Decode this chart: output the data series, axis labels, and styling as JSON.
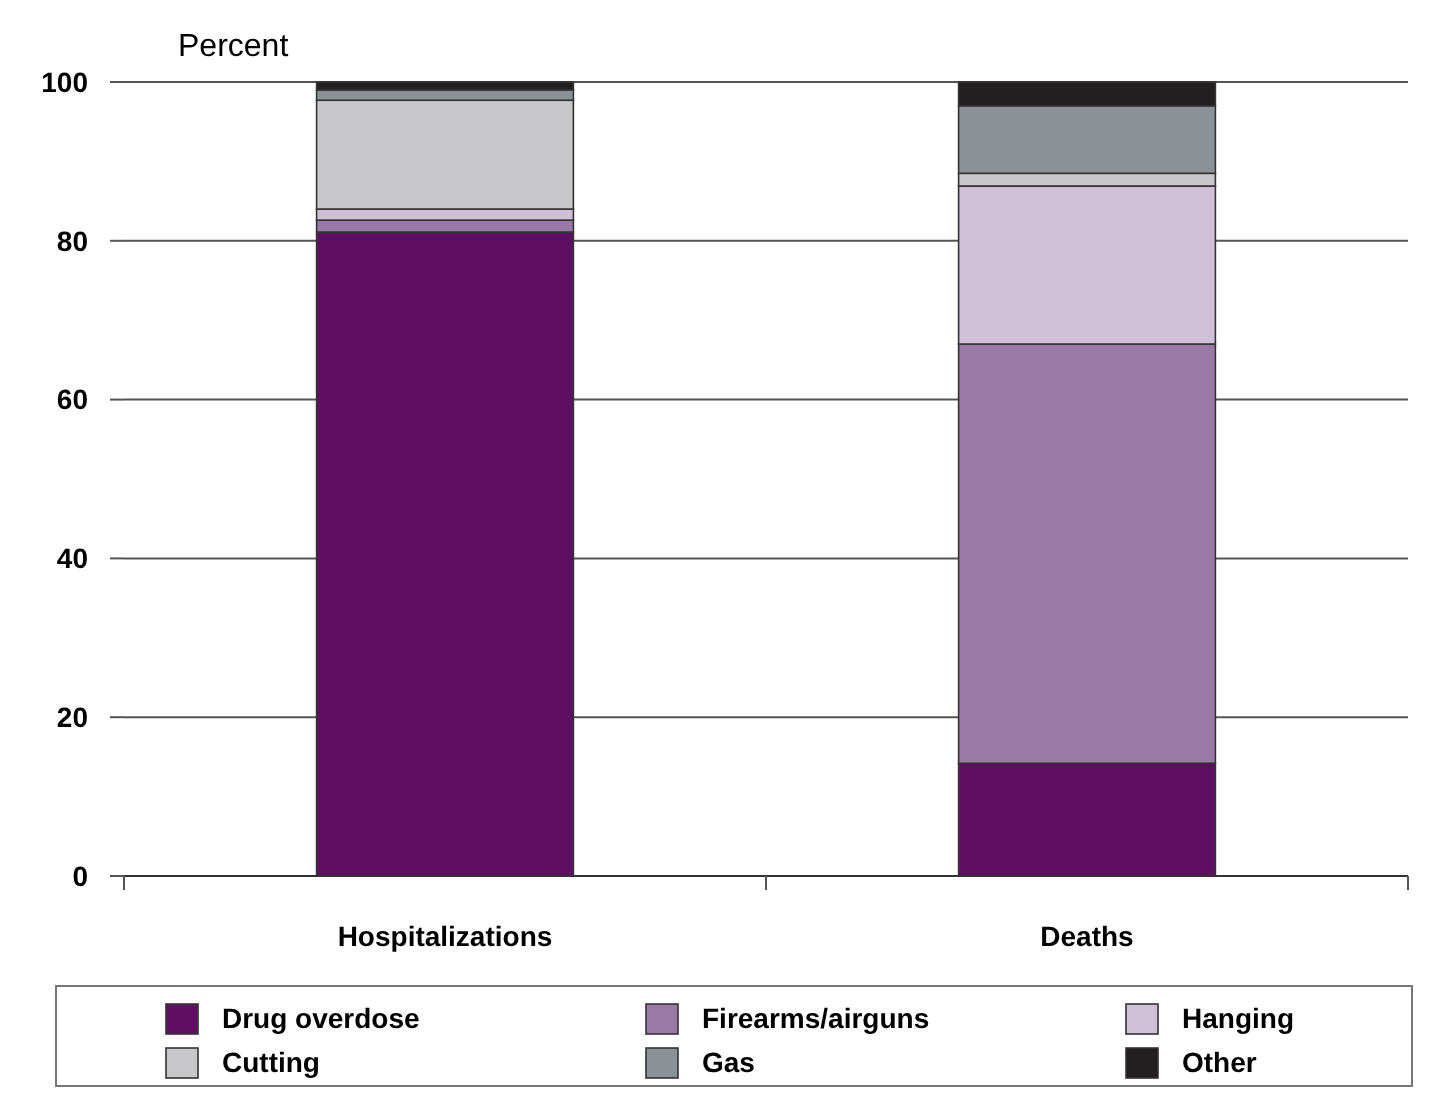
{
  "chart_data": {
    "type": "bar",
    "stacked": true,
    "ylabel": "Percent",
    "categories": [
      "Hospitalizations",
      "Deaths"
    ],
    "series": [
      {
        "name": "Drug overdose",
        "color": "#5f0f63",
        "values": [
          81.1,
          14.2
        ]
      },
      {
        "name": "Firearms/airguns",
        "color": "#9b79a6",
        "values": [
          1.5,
          52.8
        ]
      },
      {
        "name": "Hanging",
        "color": "#cfc0d8",
        "values": [
          1.4,
          19.9
        ]
      },
      {
        "name": "Cutting",
        "color": "#c8c8ca",
        "values": [
          13.7,
          1.6
        ]
      },
      {
        "name": "Gas",
        "color": "#8a9297",
        "values": [
          1.3,
          8.5
        ]
      },
      {
        "name": "Other",
        "color": "#231f20",
        "values": [
          1.0,
          3.0
        ]
      }
    ],
    "ylim": [
      0,
      100
    ],
    "yticks": [
      0,
      20,
      40,
      60,
      80,
      100
    ],
    "grid": "y",
    "legend": "bottom"
  }
}
